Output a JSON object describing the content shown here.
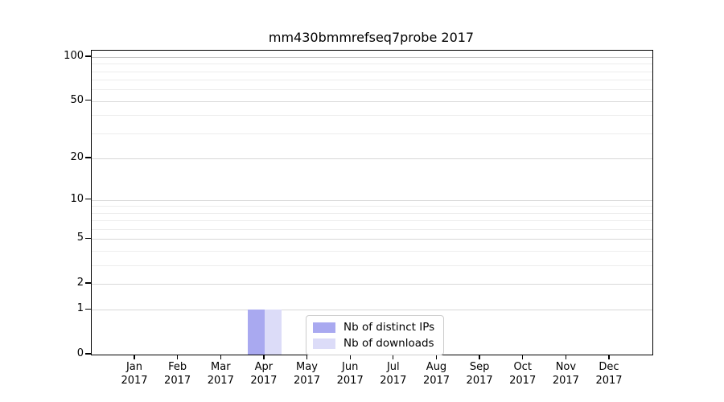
{
  "figure": {
    "title": "mm430bmmrefseq7probe 2017"
  },
  "chart_data": {
    "type": "bar",
    "title": "mm430bmmrefseq7probe 2017",
    "categories": [
      "Jan",
      "Feb",
      "Mar",
      "Apr",
      "May",
      "Jun",
      "Jul",
      "Aug",
      "Sep",
      "Oct",
      "Nov",
      "Dec"
    ],
    "category_year": "2017",
    "series": [
      {
        "name": "Nb of distinct IPs",
        "color": "#a9a9f0",
        "values": [
          0,
          0,
          0,
          1,
          0,
          0,
          0,
          0,
          0,
          0,
          0,
          0
        ]
      },
      {
        "name": "Nb of downloads",
        "color": "#dcdcf8",
        "values": [
          0,
          0,
          0,
          1,
          0,
          0,
          0,
          0,
          0,
          0,
          0,
          0
        ]
      }
    ],
    "y_scale": "log10(1+x)",
    "ylim": [
      0,
      100
    ],
    "y_ticks": [
      0,
      1,
      2,
      5,
      10,
      20,
      50,
      100
    ],
    "y_minor_ticks": [
      3,
      4,
      6,
      7,
      8,
      9,
      30,
      40,
      60,
      70,
      80,
      90
    ],
    "grid": "horizontal",
    "legend_position": "inside-bottom-center",
    "colors": {
      "axis": "#000000",
      "top_major_grid": "#c6c6c6",
      "major_grid": "#d8d8d8",
      "minor_grid": "#ededed"
    }
  }
}
